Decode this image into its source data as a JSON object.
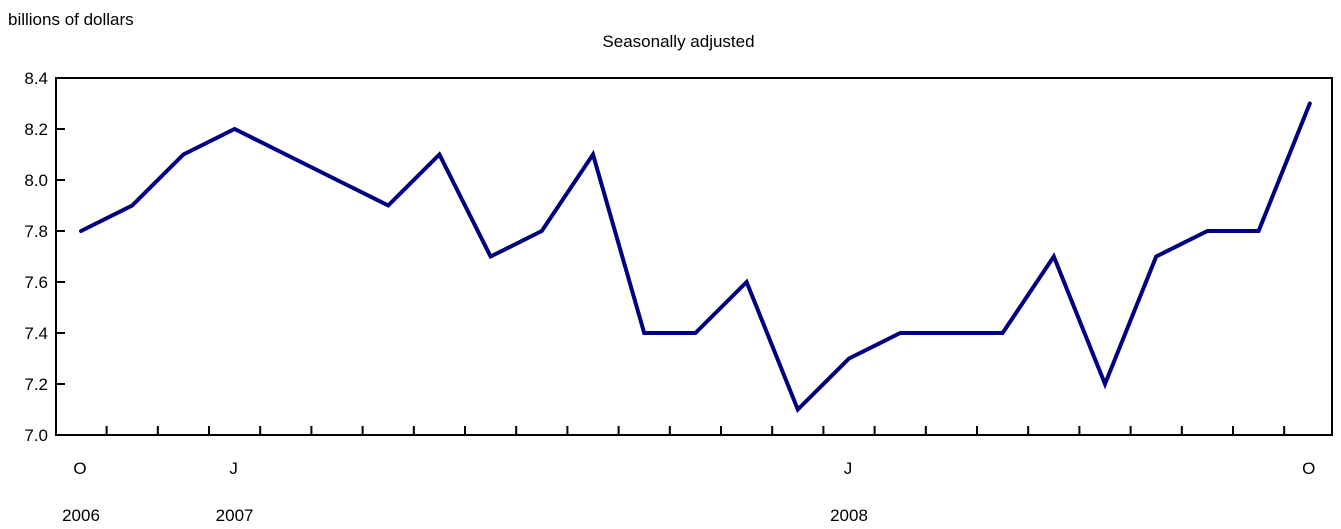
{
  "chart_data": {
    "type": "line",
    "ylabel": "billions of dollars",
    "subtitle": "Seasonally adjusted",
    "ylim": [
      7.0,
      8.4
    ],
    "yticks": [
      "7.0",
      "7.2",
      "7.4",
      "7.6",
      "7.8",
      "8.0",
      "8.2",
      "8.4"
    ],
    "x": [
      "2006-10",
      "2006-11",
      "2006-12",
      "2007-01",
      "2007-02",
      "2007-03",
      "2007-04",
      "2007-05",
      "2007-06",
      "2007-07",
      "2007-08",
      "2007-09",
      "2007-10",
      "2007-11",
      "2007-12",
      "2008-01",
      "2008-02",
      "2008-03",
      "2008-04",
      "2008-05",
      "2008-06",
      "2008-07",
      "2008-08",
      "2008-09",
      "2008-10"
    ],
    "series": [
      {
        "values": [
          7.8,
          7.9,
          8.1,
          8.2,
          8.1,
          8.0,
          7.9,
          8.1,
          7.7,
          7.8,
          8.1,
          7.4,
          7.4,
          7.6,
          7.1,
          7.3,
          7.4,
          7.4,
          7.4,
          7.7,
          7.2,
          7.7,
          7.8,
          7.8,
          8.3
        ]
      }
    ],
    "month_labels": [
      {
        "index": 0,
        "text": "O"
      },
      {
        "index": 3,
        "text": "J"
      },
      {
        "index": 15,
        "text": "J"
      },
      {
        "index": 24,
        "text": "O"
      }
    ],
    "year_labels": [
      {
        "index": 0,
        "text": "2006"
      },
      {
        "index": 3,
        "text": "2007"
      },
      {
        "index": 15,
        "text": "2008"
      }
    ],
    "colors": {
      "line": "#000080",
      "axis": "#000000"
    },
    "grid": false,
    "legend": "none"
  }
}
